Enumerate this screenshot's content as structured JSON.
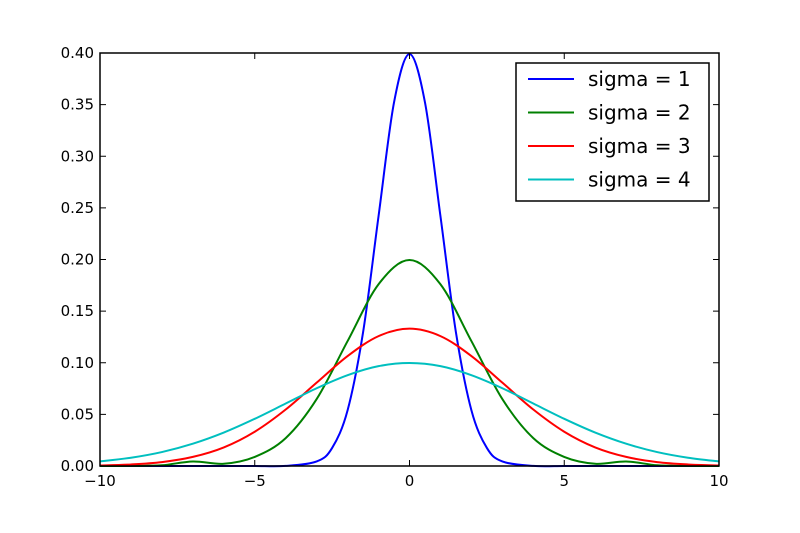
{
  "chart_data": {
    "type": "line",
    "title": "",
    "xlabel": "",
    "ylabel": "",
    "xlim": [
      -10,
      10
    ],
    "ylim": [
      0,
      0.4
    ],
    "x_ticks": [
      -10,
      -5,
      0,
      5,
      10
    ],
    "x_tick_labels": [
      "−10",
      "−5",
      "0",
      "5",
      "10"
    ],
    "y_ticks": [
      0.0,
      0.05,
      0.1,
      0.15,
      0.2,
      0.25,
      0.3,
      0.35,
      0.4
    ],
    "y_tick_labels": [
      "0.00",
      "0.05",
      "0.10",
      "0.15",
      "0.20",
      "0.25",
      "0.30",
      "0.35",
      "0.40"
    ],
    "grid": false,
    "legend_position": "top-right",
    "series": [
      {
        "name": "sigma = 1",
        "color": "#0000ff",
        "x": [
          -10,
          -8,
          -6,
          -5,
          -4,
          -3,
          -2.5,
          -2,
          -1.5,
          -1,
          -0.5,
          0,
          0.5,
          1,
          1.5,
          2,
          2.5,
          3,
          4,
          5,
          6,
          8,
          10
        ],
        "values": [
          0.0,
          0.0,
          0.0,
          0.0,
          0.0001,
          0.0044,
          0.0175,
          0.054,
          0.1295,
          0.242,
          0.3521,
          0.3989,
          0.3521,
          0.242,
          0.1295,
          0.054,
          0.0175,
          0.0044,
          0.0001,
          0.0,
          0.0,
          0.0,
          0.0
        ]
      },
      {
        "name": "sigma = 2",
        "color": "#008000",
        "x": [
          -10,
          -9,
          -8,
          -7,
          -6,
          -5,
          -4,
          -3,
          -2,
          -1,
          0,
          1,
          2,
          3,
          4,
          5,
          6,
          7,
          8,
          9,
          10
        ],
        "values": [
          0.0,
          0.0001,
          0.0007,
          0.0044,
          0.0022,
          0.0088,
          0.027,
          0.0648,
          0.121,
          0.176,
          0.1995,
          0.176,
          0.121,
          0.0648,
          0.027,
          0.0088,
          0.0022,
          0.0044,
          0.0007,
          0.0001,
          0.0
        ]
      },
      {
        "name": "sigma = 3",
        "color": "#ff0000",
        "x": [
          -10,
          -9,
          -8,
          -7,
          -6,
          -5,
          -4,
          -3,
          -2,
          -1,
          0,
          1,
          2,
          3,
          4,
          5,
          6,
          7,
          8,
          9,
          10
        ],
        "values": [
          0.0005,
          0.0015,
          0.0038,
          0.0088,
          0.018,
          0.0332,
          0.0547,
          0.0807,
          0.1065,
          0.1258,
          0.133,
          0.1258,
          0.1065,
          0.0807,
          0.0547,
          0.0332,
          0.018,
          0.0088,
          0.0038,
          0.0015,
          0.0005
        ]
      },
      {
        "name": "sigma = 4",
        "color": "#00bfbf",
        "x": [
          -10,
          -9,
          -8,
          -7,
          -6,
          -5,
          -4,
          -3,
          -2,
          -1,
          0,
          1,
          2,
          3,
          4,
          5,
          6,
          7,
          8,
          9,
          10
        ],
        "values": [
          0.0044,
          0.008,
          0.0135,
          0.0216,
          0.0324,
          0.0457,
          0.0605,
          0.0753,
          0.088,
          0.0967,
          0.0997,
          0.0967,
          0.088,
          0.0753,
          0.0605,
          0.0457,
          0.0324,
          0.0216,
          0.0135,
          0.008,
          0.0044
        ]
      }
    ]
  }
}
